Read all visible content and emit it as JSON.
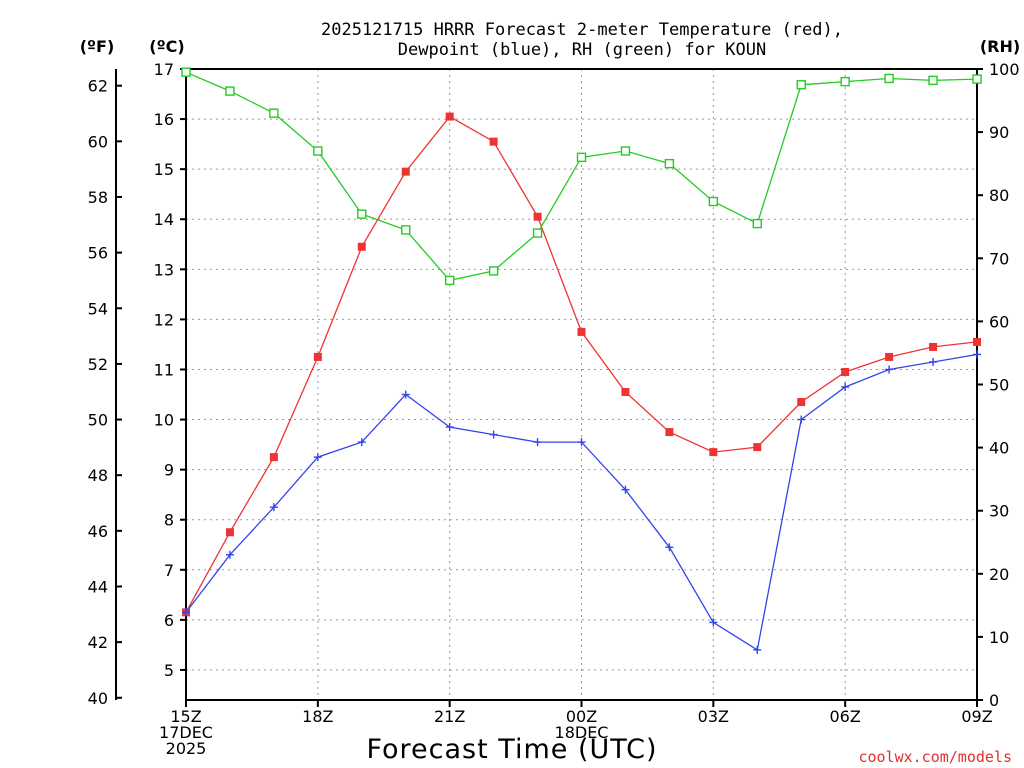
{
  "chart_data": {
    "type": "line",
    "title_lines": [
      "2025121715 HRRR Forecast 2-meter Temperature (red),",
      "Dewpoint (blue), RH (green) for KOUN"
    ],
    "xlabel": "Forecast Time (UTC)",
    "credit": "coolwx.com/models",
    "axis_labels": {
      "fahrenheit": "(ºF)",
      "celsius": "(ºC)",
      "rh": "(RH)"
    },
    "x_hours": [
      0,
      1,
      2,
      3,
      4,
      5,
      6,
      7,
      8,
      9,
      10,
      11,
      12,
      13,
      14,
      15,
      16,
      17,
      18
    ],
    "x_ticks": [
      {
        "hour": 0,
        "lines": [
          "15Z",
          "17DEC",
          "2025"
        ]
      },
      {
        "hour": 3,
        "lines": [
          "18Z"
        ]
      },
      {
        "hour": 6,
        "lines": [
          "21Z"
        ]
      },
      {
        "hour": 9,
        "lines": [
          "00Z",
          "18DEC"
        ]
      },
      {
        "hour": 12,
        "lines": [
          "03Z"
        ]
      },
      {
        "hour": 15,
        "lines": [
          "06Z"
        ]
      },
      {
        "hour": 18,
        "lines": [
          "09Z"
        ]
      }
    ],
    "xlim": [
      0,
      18
    ],
    "celsius_ylim": [
      4.4,
      17.0
    ],
    "celsius_ticks": [
      5,
      6,
      7,
      8,
      9,
      10,
      11,
      12,
      13,
      14,
      15,
      16,
      17
    ],
    "fahrenheit_ticks": [
      40,
      42,
      44,
      46,
      48,
      50,
      52,
      54,
      56,
      58,
      60,
      62
    ],
    "rh_ylim": [
      0,
      100
    ],
    "rh_ticks": [
      0,
      10,
      20,
      30,
      40,
      50,
      60,
      70,
      80,
      90,
      100
    ],
    "grid": true,
    "series": [
      {
        "name": "Temperature",
        "axis": "celsius",
        "color": "#ee3333",
        "marker": "filled-square",
        "values": [
          6.15,
          7.75,
          9.25,
          11.25,
          13.45,
          14.95,
          16.05,
          15.55,
          14.05,
          11.75,
          10.55,
          9.75,
          9.35,
          9.45,
          10.35,
          10.95,
          11.25,
          11.45,
          11.55
        ]
      },
      {
        "name": "Dewpoint",
        "axis": "celsius",
        "color": "#3344ee",
        "marker": "plus",
        "values": [
          6.15,
          7.3,
          8.25,
          9.25,
          9.55,
          10.5,
          9.85,
          9.7,
          9.55,
          9.55,
          8.6,
          7.45,
          5.95,
          5.4,
          10.0,
          10.65,
          11.0,
          11.15,
          11.3
        ]
      },
      {
        "name": "RH",
        "axis": "rh",
        "color": "#22cc22",
        "marker": "open-square",
        "values": [
          99.5,
          96.5,
          93,
          87,
          77,
          74.5,
          66.5,
          68,
          74,
          86,
          87,
          85,
          79,
          75.5,
          97.5,
          98,
          98.5,
          98.2,
          98.4
        ]
      }
    ]
  }
}
